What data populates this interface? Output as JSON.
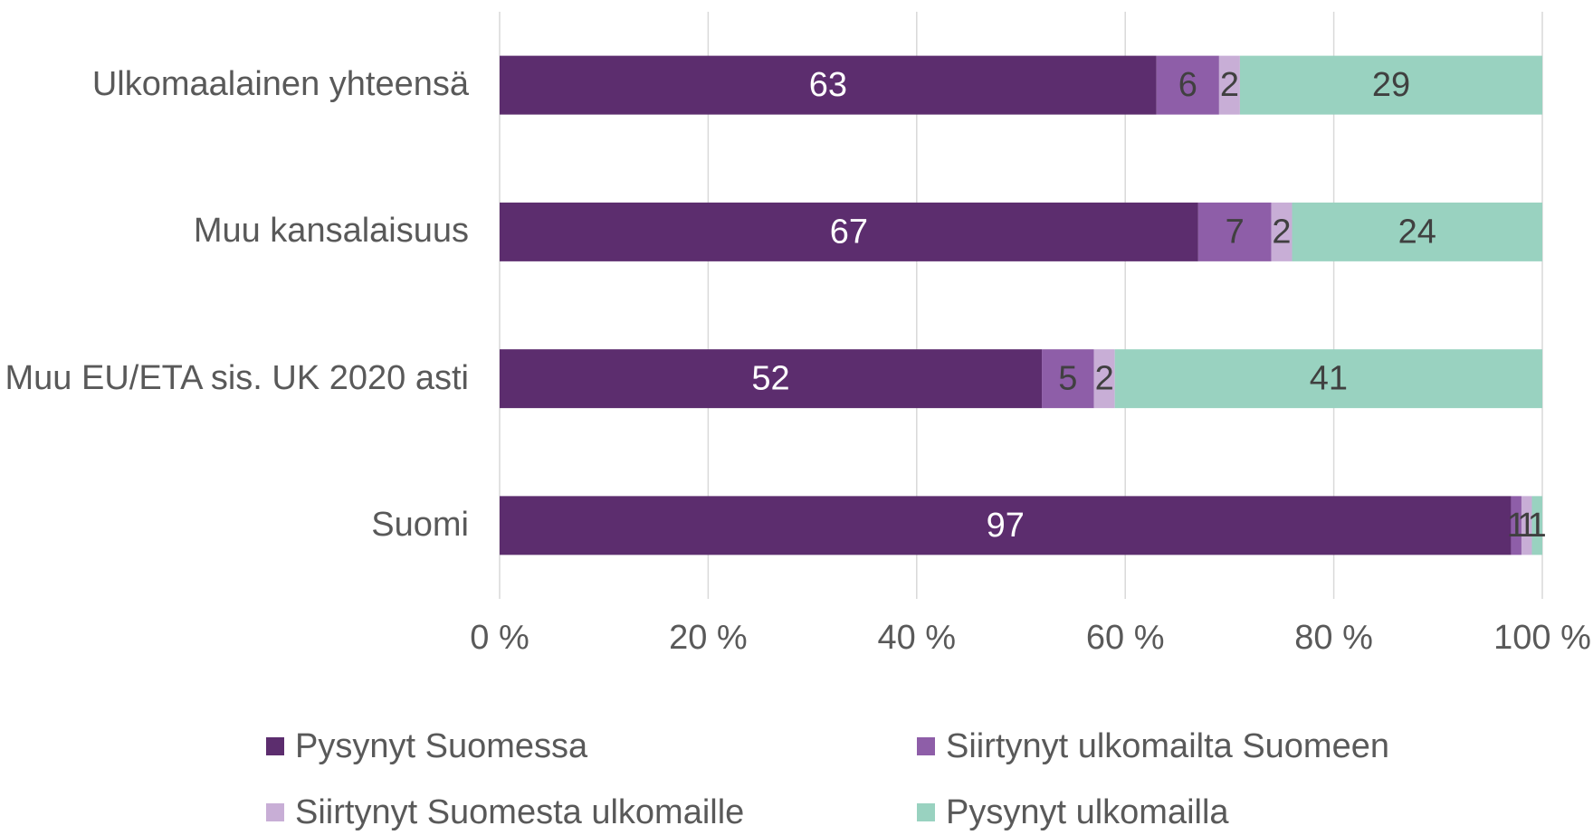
{
  "chart_data": {
    "type": "stacked_bar_horizontal",
    "categories": [
      "Ulkomaalainen yhteensä",
      "Muu kansalaisuus",
      "Muu EU/ETA sis. UK 2020 asti",
      "Suomi"
    ],
    "series": [
      {
        "name": "Pysynyt Suomessa",
        "color": "#5c2d6e",
        "values": [
          63,
          67,
          52,
          97
        ]
      },
      {
        "name": "Siirtynyt ulkomailta Suomeen",
        "color": "#8e5ea8",
        "values": [
          6,
          7,
          5,
          1
        ]
      },
      {
        "name": "Siirtynyt Suomesta ulkomaille",
        "color": "#c8aed6",
        "values": [
          2,
          2,
          2,
          1
        ]
      },
      {
        "name": "Pysynyt ulkomailla",
        "color": "#99d2c0",
        "values": [
          29,
          24,
          41,
          1
        ]
      }
    ],
    "xlim": [
      0,
      100
    ],
    "xticks": [
      {
        "value": 0,
        "label": "0 %"
      },
      {
        "value": 20,
        "label": "20 %"
      },
      {
        "value": 40,
        "label": "40 %"
      },
      {
        "value": 60,
        "label": "60 %"
      },
      {
        "value": 80,
        "label": "80 %"
      },
      {
        "value": 100,
        "label": "100 %"
      }
    ],
    "grid": true,
    "legend": "bottom"
  }
}
